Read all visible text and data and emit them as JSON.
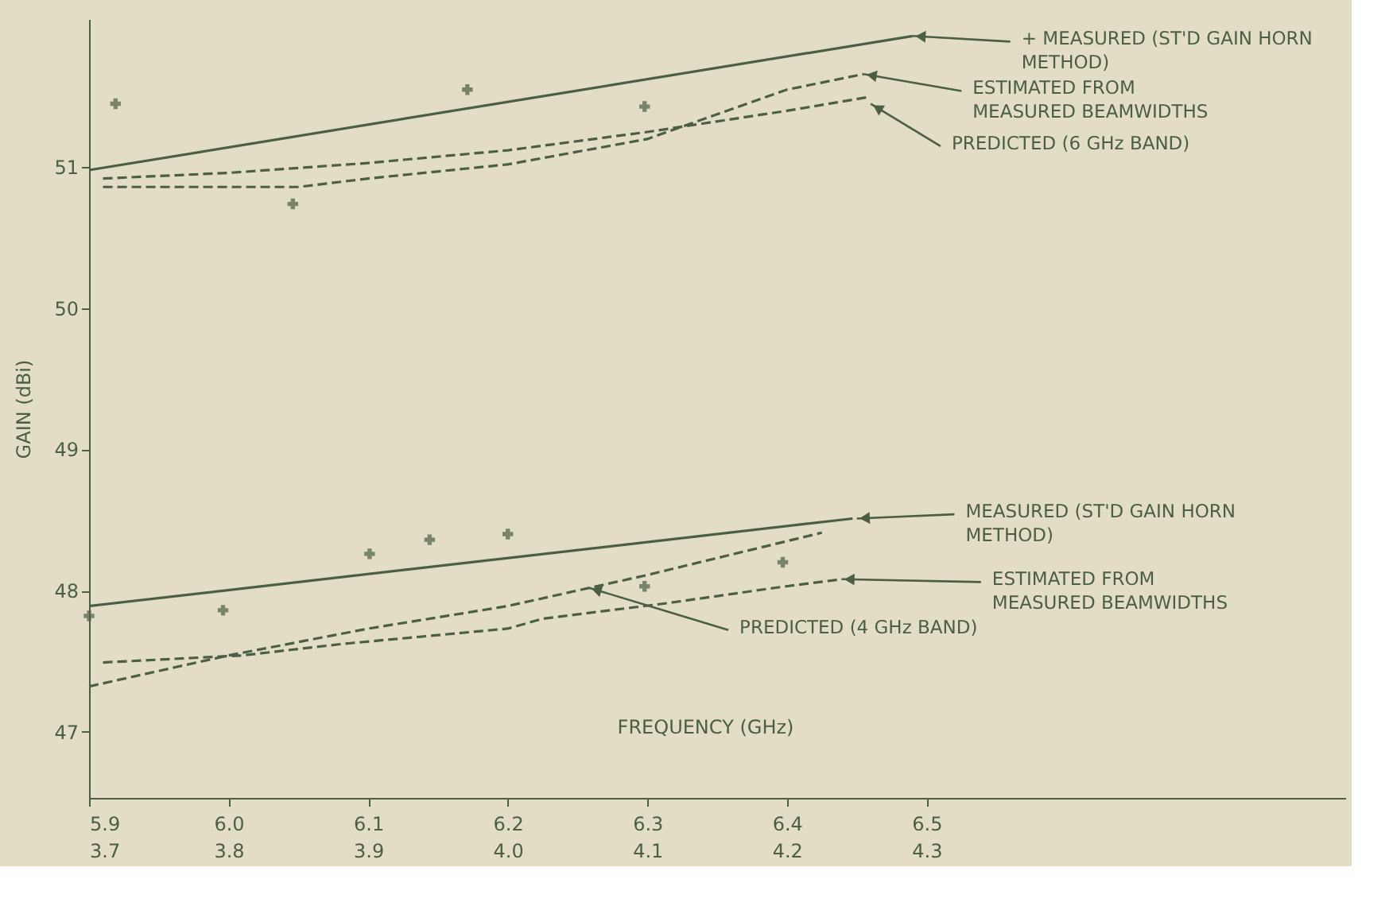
{
  "chart_data": {
    "type": "line",
    "ylabel": "GAIN (dBi)",
    "xlabel": "FREQUENCY (GHz)",
    "xlim": [
      5.9,
      6.8
    ],
    "xticks": [
      5.9,
      {
        "value": 6.0,
        "label": "6.0"
      },
      6.1,
      6.2,
      6.3,
      6.4,
      6.5
    ],
    "x2lim": [
      3.7,
      4.6
    ],
    "x2ticks": [
      3.7,
      3.8,
      3.9,
      {
        "value": 4.0,
        "label": "4.0"
      },
      4.1,
      4.2,
      4.3
    ],
    "ylim": [
      46.53,
      52.05
    ],
    "yticks": [
      47,
      48,
      49,
      50,
      51
    ],
    "grid": false,
    "series": [
      {
        "color": "#4a5f44",
        "line_style": "solid",
        "x": [
          5.9,
          6.49
        ],
        "values": [
          50.98,
          51.93
        ]
      },
      {
        "type": "scatter",
        "color": "#4a5f44",
        "marker": "cross",
        "x": [
          5.919,
          6.046,
          6.171,
          6.298
        ],
        "values": [
          51.45,
          50.74,
          51.55,
          51.43
        ]
      },
      {
        "color": "#4a5f44",
        "line_style": "dashed",
        "x": [
          5.91,
          6.0,
          6.1,
          6.2,
          6.3,
          6.4,
          6.46
        ],
        "values": [
          50.92,
          50.96,
          51.03,
          51.12,
          51.25,
          51.4,
          51.5
        ]
      },
      {
        "color": "#4a5f44",
        "line_style": "dashed",
        "x": [
          5.91,
          6.05,
          6.1,
          6.2,
          6.3,
          6.4,
          6.455
        ],
        "values": [
          50.86,
          50.86,
          50.92,
          51.02,
          51.2,
          51.55,
          51.66
        ]
      },
      {
        "axis": "x2",
        "color": "#4a5f44",
        "line_style": "solid",
        "x": [
          3.7,
          4.247
        ],
        "values": [
          47.89,
          48.51
        ]
      },
      {
        "type": "scatter",
        "axis": "x2",
        "color": "#4a5f44",
        "marker": "cross",
        "x": [
          3.7,
          3.796,
          3.901,
          3.944,
          4.0,
          4.098,
          4.197
        ],
        "values": [
          47.82,
          47.86,
          48.26,
          48.36,
          48.4,
          48.03,
          48.2
        ]
      },
      {
        "axis": "x2",
        "color": "#4a5f44",
        "line_style": "dashed",
        "x": [
          3.7,
          3.8,
          3.9,
          4.0,
          4.1,
          4.225
        ],
        "values": [
          47.32,
          47.54,
          47.73,
          47.89,
          48.11,
          48.41
        ]
      },
      {
        "axis": "x2",
        "color": "#4a5f44",
        "line_style": "dashed",
        "x": [
          3.71,
          3.81,
          3.88,
          4.0,
          4.025,
          4.114,
          4.192,
          4.239
        ],
        "values": [
          47.49,
          47.54,
          47.62,
          47.73,
          47.8,
          47.91,
          48.02,
          48.08
        ]
      }
    ],
    "annotations": [
      {
        "text": "+ MEASURED (ST'D GAIN HORN\nMETHOD)",
        "x": 6.49,
        "y": 51.93
      },
      {
        "text": "ESTIMATED FROM\nMEASURED BEAMWIDTHS",
        "x": 6.455,
        "y": 51.66
      },
      {
        "text": "PREDICTED (6 GHz BAND)",
        "x": 6.46,
        "y": 51.45
      },
      {
        "text": "MEASURED (ST'D GAIN HORN\nMETHOD)",
        "x": 6.45,
        "y": 48.51
      },
      {
        "text": "ESTIMATED FROM\nMEASURED BEAMWIDTHS",
        "x": 6.439,
        "y": 48.08
      },
      {
        "text": "PREDICTED (4 GHz BAND)",
        "x": 6.258,
        "y": 48.02
      }
    ]
  }
}
